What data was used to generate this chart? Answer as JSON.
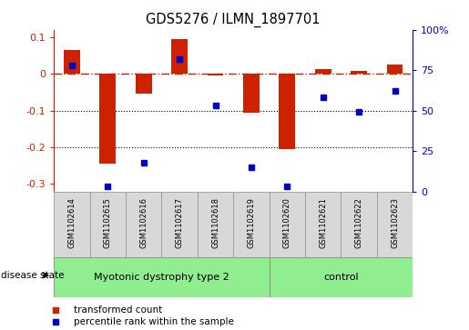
{
  "title": "GDS5276 / ILMN_1897701",
  "samples": [
    "GSM1102614",
    "GSM1102615",
    "GSM1102616",
    "GSM1102617",
    "GSM1102618",
    "GSM1102619",
    "GSM1102620",
    "GSM1102621",
    "GSM1102622",
    "GSM1102623"
  ],
  "red_values": [
    0.065,
    -0.245,
    -0.055,
    0.095,
    -0.005,
    -0.105,
    -0.205,
    0.012,
    0.008,
    0.025
  ],
  "blue_pct": [
    78,
    3,
    18,
    82,
    53,
    15,
    3,
    58,
    49,
    62
  ],
  "group1_count": 6,
  "group1_label": "Myotonic dystrophy type 2",
  "group2_label": "control",
  "group_color": "#90EE90",
  "cell_color": "#D8D8D8",
  "ylim_left": [
    -0.32,
    0.12
  ],
  "ylim_right": [
    0,
    100
  ],
  "red_color": "#CC2200",
  "blue_color": "#0000CC",
  "hline_color": "#CC2200",
  "dotline_color": "#000000",
  "bar_width": 0.45,
  "blue_marker_size": 5,
  "legend_red_label": "transformed count",
  "legend_blue_label": "percentile rank within the sample"
}
